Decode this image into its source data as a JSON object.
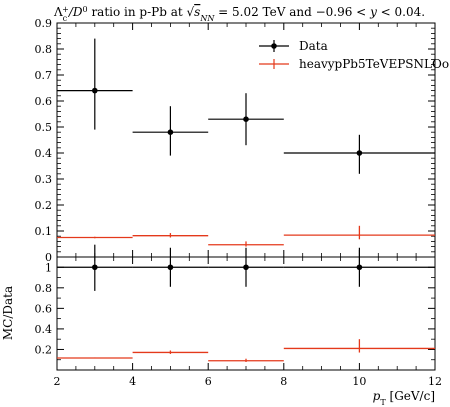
{
  "chart_data": {
    "type": "scatter",
    "title": "Λc+/D0 ratio in p-Pb at √sNN = 5.02 TeV and −0.96 < y < 0.04.",
    "title_parts": {
      "prefix": "Λ",
      "sub": "c",
      "sup": "+",
      "mid": "/D",
      "sup2": "0",
      "ratio_text": " ratio in p-Pb at ",
      "sqrt_s": "s",
      "sqrt_sub": "NN",
      "energy": " = 5.02 TeV and −0.96 < ",
      "y_var": "y",
      "rapidity": " < 0.04."
    },
    "xlabel": "pT [GeV/c]",
    "xlabel_parts": {
      "var": "p",
      "sub": "T",
      "unit": " [GeV/c]"
    },
    "ylabel_ratio": "MC/Data",
    "xlim": [
      2,
      12
    ],
    "ylim_main": [
      0,
      0.9
    ],
    "ylim_ratio": [
      0,
      1.1
    ],
    "x_ticks": [
      "2",
      "4",
      "6",
      "8",
      "10",
      "12"
    ],
    "y_ticks_main": [
      "0",
      "0.1",
      "0.2",
      "0.3",
      "0.4",
      "0.5",
      "0.6",
      "0.7",
      "0.8",
      "0.9"
    ],
    "y_ticks_ratio": [
      "0.2",
      "0.4",
      "0.6",
      "0.8",
      "1"
    ],
    "legend_position": "top-right",
    "series": [
      {
        "name": "Data",
        "color": "#000000",
        "style": "points",
        "points": [
          {
            "xlow": 2,
            "xhigh": 4,
            "x": 3,
            "y": 0.64,
            "ylow": 0.49,
            "yhigh": 0.84
          },
          {
            "xlow": 4,
            "xhigh": 6,
            "x": 5,
            "y": 0.48,
            "ylow": 0.39,
            "yhigh": 0.58
          },
          {
            "xlow": 6,
            "xhigh": 8,
            "x": 7,
            "y": 0.53,
            "ylow": 0.43,
            "yhigh": 0.63
          },
          {
            "xlow": 8,
            "xhigh": 12,
            "x": 10,
            "y": 0.4,
            "ylow": 0.32,
            "yhigh": 0.47
          }
        ]
      },
      {
        "name": "heavypPb5TeVEPSNLOo",
        "color": "#e4391b",
        "style": "histogram",
        "points": [
          {
            "xlow": 2,
            "xhigh": 4,
            "x": 3,
            "y": 0.075,
            "ylow": 0.072,
            "yhigh": 0.078
          },
          {
            "xlow": 4,
            "xhigh": 6,
            "x": 5,
            "y": 0.082,
            "ylow": 0.075,
            "yhigh": 0.092
          },
          {
            "xlow": 6,
            "xhigh": 8,
            "x": 7,
            "y": 0.047,
            "ylow": 0.04,
            "yhigh": 0.06
          },
          {
            "xlow": 8,
            "xhigh": 12,
            "x": 10,
            "y": 0.084,
            "ylow": 0.068,
            "yhigh": 0.12
          }
        ]
      }
    ],
    "ratio_series": [
      {
        "name": "Data",
        "color": "#000000",
        "style": "points",
        "points": [
          {
            "xlow": 2,
            "xhigh": 4,
            "x": 3,
            "y": 1.0,
            "ylow": 0.77,
            "yhigh": 1.22
          },
          {
            "xlow": 4,
            "xhigh": 6,
            "x": 5,
            "y": 1.0,
            "ylow": 0.81,
            "yhigh": 1.19
          },
          {
            "xlow": 6,
            "xhigh": 8,
            "x": 7,
            "y": 1.0,
            "ylow": 0.81,
            "yhigh": 1.19
          },
          {
            "xlow": 8,
            "xhigh": 12,
            "x": 10,
            "y": 1.0,
            "ylow": 0.81,
            "yhigh": 1.19
          }
        ]
      },
      {
        "name": "heavypPb5TeVEPSNLOo",
        "color": "#e4391b",
        "style": "histogram",
        "points": [
          {
            "xlow": 2,
            "xhigh": 4,
            "x": 3,
            "y": 0.117,
            "ylow": 0.112,
            "yhigh": 0.122
          },
          {
            "xlow": 4,
            "xhigh": 6,
            "x": 5,
            "y": 0.171,
            "ylow": 0.156,
            "yhigh": 0.19
          },
          {
            "xlow": 6,
            "xhigh": 8,
            "x": 7,
            "y": 0.09,
            "ylow": 0.078,
            "yhigh": 0.11
          },
          {
            "xlow": 8,
            "xhigh": 12,
            "x": 10,
            "y": 0.21,
            "ylow": 0.17,
            "yhigh": 0.3
          }
        ]
      }
    ]
  }
}
